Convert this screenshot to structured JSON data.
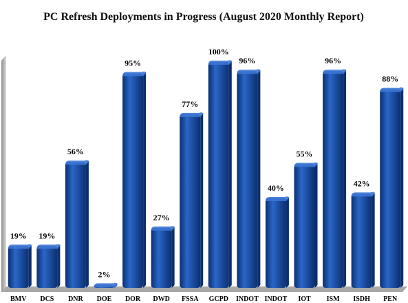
{
  "chart_data": {
    "type": "bar",
    "title": "PC Refresh Deployments in Progress (August 2020 Monthly Report)",
    "categories": [
      "BMV",
      "DCS",
      "DNR",
      "DOE",
      "DOR",
      "DWD",
      "FSSA",
      "GCPD",
      "INDOT",
      "INDOT",
      "IOT",
      "ISM",
      "ISDH",
      "PEN"
    ],
    "values": [
      19,
      19,
      56,
      2,
      95,
      27,
      77,
      100,
      96,
      40,
      55,
      96,
      42,
      88
    ],
    "data_labels": [
      "19%",
      "19%",
      "56%",
      "2%",
      "95%",
      "27%",
      "77%",
      "100%",
      "96%",
      "40%",
      "55%",
      "96%",
      "42%",
      "88%"
    ],
    "ylim": [
      0,
      100
    ],
    "xlabel": "",
    "ylabel": "",
    "grid": false,
    "legend": "none",
    "style": "3d-cylinder-bars",
    "colors": {
      "bar": "#1448a3",
      "bar_light": "#2a66c8",
      "bar_dark": "#0b2f70",
      "bar_top": "#3d76d4",
      "wall": "#c8c8c8",
      "floor": "#9a9a9a"
    }
  }
}
